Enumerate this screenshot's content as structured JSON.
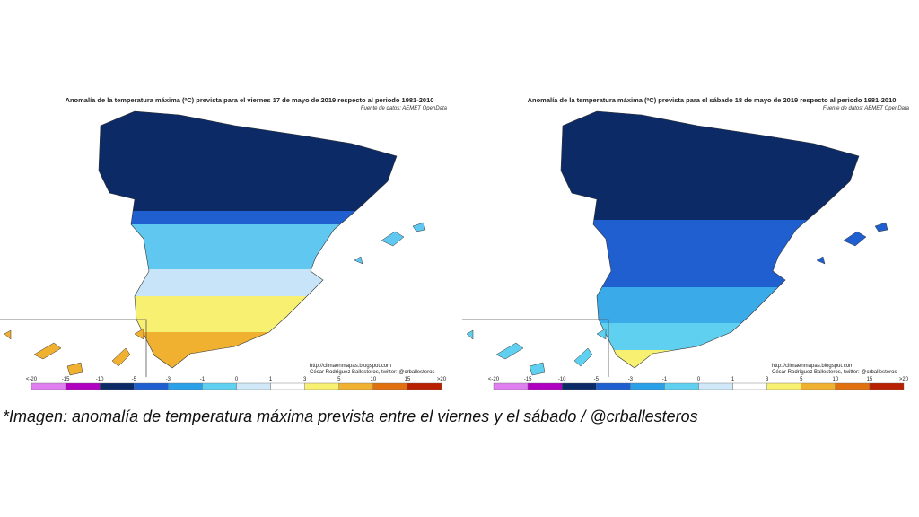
{
  "maps": [
    {
      "title": "Anomalía de la temperatura máxima (ºC) prevista para el viernes 17 de mayo de 2019 respecto al periodo 1981-2010",
      "source": "Fuente de datos: AEMET OpenData",
      "credit_url": "http://climaenmapas.blogspot.com",
      "credit_author": "César Rodríguez Ballesteros, twitter: @crballesteros"
    },
    {
      "title": "Anomalía de la temperatura máxima (ºC) prevista para el sábado 18 de mayo de 2019 respecto al periodo 1981-2010",
      "source": "Fuente de datos: AEMET OpenData",
      "credit_url": "http://climaenmapas.blogspot.com",
      "credit_author": "César Rodríguez Ballesteros, twitter: @crballesteros"
    }
  ],
  "legend": {
    "labels": [
      "<-20",
      "-15",
      "-10",
      "-5",
      "-3",
      "-1",
      "0",
      "1",
      "3",
      "5",
      "10",
      "15",
      ">20"
    ]
  },
  "caption": "*Imagen: anomalía de temperatura máxima prevista entre el viernes y el sábado / @crballesteros"
}
